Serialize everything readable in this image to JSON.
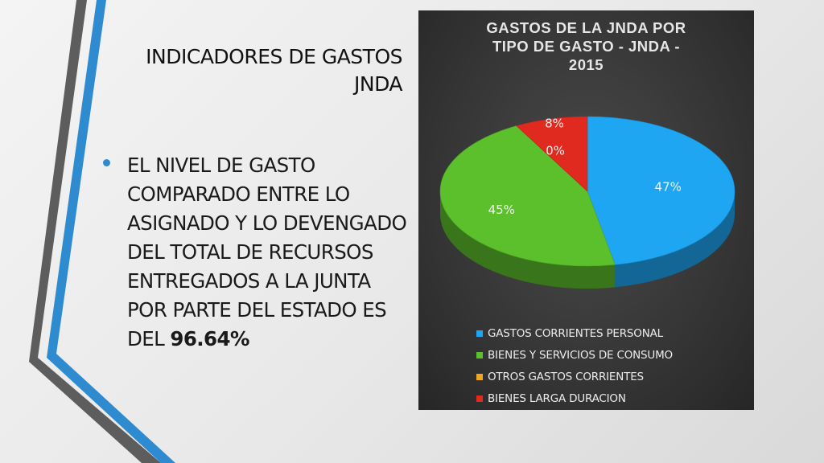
{
  "slide": {
    "title_line1": "INDICADORES DE GASTOS",
    "title_line2": "JNDA",
    "bullet_main": "EL NIVEL DE GASTO COMPARADO ENTRE LO ASIGNADO Y LO DEVENGADO DEL TOTAL DE RECURSOS ENTREGADOS A LA JUNTA POR PARTE DEL ESTADO ES DEL",
    "bullet_value": "96.64%"
  },
  "colors": {
    "panel": "#303030",
    "accent_blue": "#2f8bd0",
    "deco_gray": "#5d5d5d"
  },
  "chart_data": {
    "type": "pie",
    "title": "GASTOS DE LA JNDA POR TIPO DE GASTO - JNDA - 2015",
    "title_lines": [
      "GASTOS DE LA JNDA POR",
      "TIPO DE GASTO - JNDA -",
      "2015"
    ],
    "categories": [
      "GASTOS CORRIENTES PERSONAL",
      "BIENES Y SERVICIOS DE CONSUMO",
      "OTROS GASTOS CORRIENTES",
      "BIENES LARGA DURACION"
    ],
    "values": [
      47,
      45,
      0,
      8
    ],
    "labels": [
      "47%",
      "45%",
      "0%",
      "8%"
    ],
    "colors": [
      "#1ea6f2",
      "#5cbf2c",
      "#f2a51e",
      "#e02a20"
    ],
    "legend": "bottom",
    "three_d": true
  }
}
